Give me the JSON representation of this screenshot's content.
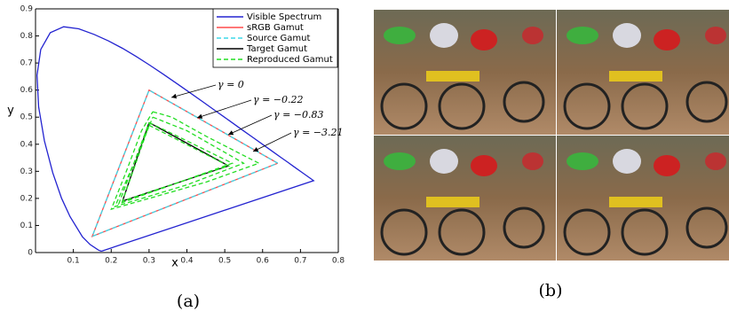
{
  "chart_data": {
    "type": "line",
    "xlabel": "x",
    "ylabel": "y",
    "xlim": [
      0,
      0.8
    ],
    "ylim": [
      0,
      0.9
    ],
    "xticks": [
      0.1,
      0.2,
      0.3,
      0.4,
      0.5,
      0.6,
      0.7,
      0.8
    ],
    "yticks": [
      0,
      0.1,
      0.2,
      0.3,
      0.4,
      0.5,
      0.6,
      0.7,
      0.8,
      0.9
    ],
    "legend": "upper right",
    "series": [
      {
        "name": "Visible Spectrum",
        "color": "#2323d0",
        "style": "solid",
        "x": [
          0.1741,
          0.1666,
          0.144,
          0.1241,
          0.0913,
          0.0687,
          0.0454,
          0.0235,
          0.0082,
          0.0039,
          0.0139,
          0.0389,
          0.0743,
          0.1142,
          0.1547,
          0.1929,
          0.2296,
          0.2658,
          0.3016,
          0.3373,
          0.3731,
          0.4087,
          0.4441,
          0.4788,
          0.5125,
          0.5448,
          0.5752,
          0.6029,
          0.627,
          0.6482,
          0.6658,
          0.6801,
          0.6915,
          0.7006,
          0.7347,
          0.1741
        ],
        "values": [
          0.005,
          0.0089,
          0.0297,
          0.0578,
          0.1327,
          0.2007,
          0.295,
          0.4127,
          0.5384,
          0.6548,
          0.7502,
          0.812,
          0.8338,
          0.8262,
          0.8059,
          0.7816,
          0.7543,
          0.7243,
          0.6923,
          0.6589,
          0.6245,
          0.5896,
          0.5547,
          0.5202,
          0.4866,
          0.4544,
          0.4242,
          0.3965,
          0.3725,
          0.3514,
          0.334,
          0.3197,
          0.3083,
          0.2993,
          0.2653,
          0.005
        ]
      },
      {
        "name": "sRGB Gamut",
        "color": "#ff4a4a",
        "style": "solid",
        "x": [
          0.64,
          0.3,
          0.15,
          0.64
        ],
        "values": [
          0.33,
          0.6,
          0.06,
          0.33
        ]
      },
      {
        "name": "Source Gamut",
        "color": "#3dd8e8",
        "style": "dashed",
        "x": [
          0.64,
          0.3,
          0.15,
          0.64
        ],
        "values": [
          0.33,
          0.6,
          0.06,
          0.33
        ]
      },
      {
        "name": "Target Gamut",
        "color": "#000000",
        "style": "solid",
        "x": [
          0.3,
          0.51,
          0.23,
          0.3
        ],
        "values": [
          0.48,
          0.32,
          0.19,
          0.48
        ]
      },
      {
        "name": "Reproduced Gamut",
        "color": "#22dd22",
        "style": "dashed",
        "x": [
          0.31,
          0.36,
          0.45,
          0.59,
          0.45,
          0.3,
          0.2,
          0.24,
          0.28,
          0.31,
          null,
          0.31,
          0.4,
          0.55,
          0.4,
          0.21,
          0.26,
          0.31,
          null,
          0.3,
          0.36,
          0.52,
          0.38,
          0.22,
          0.26,
          0.3,
          null,
          0.3,
          0.51,
          0.23,
          0.3
        ],
        "values": [
          0.52,
          0.5,
          0.43,
          0.33,
          0.26,
          0.2,
          0.16,
          0.3,
          0.45,
          0.52,
          null,
          0.5,
          0.45,
          0.33,
          0.25,
          0.17,
          0.33,
          0.5,
          null,
          0.48,
          0.44,
          0.33,
          0.26,
          0.18,
          0.33,
          0.48,
          null,
          0.47,
          0.32,
          0.19,
          0.47
        ]
      }
    ],
    "annotations": [
      "γ = 0",
      "γ = −0.22",
      "γ = −0.83",
      "γ = −3.21"
    ]
  },
  "panel_labels": [
    "(a)",
    "(b)"
  ]
}
